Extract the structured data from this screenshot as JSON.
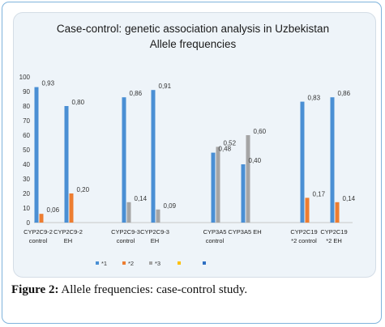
{
  "chart_data": {
    "type": "bar",
    "title": "Case-control: genetic association analysis in Uzbekistan",
    "subtitle": "Allele  frequencies",
    "ylim": [
      0,
      100
    ],
    "yticks": [
      0,
      10,
      20,
      30,
      40,
      50,
      60,
      70,
      80,
      90,
      100
    ],
    "grid": false,
    "legend_position": "bottom",
    "categories": [
      [
        "CYP2C9-2",
        "control"
      ],
      [
        "CYP2C9-2",
        "EH"
      ],
      [
        "CYP2C9-3",
        "control"
      ],
      [
        "CYP2C9-3",
        "EH"
      ],
      [
        "CYP3A5",
        "control"
      ],
      [
        "CYP3A5 EH"
      ],
      [
        "CYP2C19",
        "*2 control"
      ],
      [
        "CYP2C19",
        "*2 EH"
      ]
    ],
    "series": [
      {
        "name": "*1",
        "color": "#4a8fd4",
        "values": [
          93,
          80,
          86,
          91,
          48,
          40,
          83,
          86
        ],
        "labels": [
          "0,93",
          "0,80",
          "0,86",
          "0,91",
          "0,48",
          "0,40",
          "0,83",
          "0,86"
        ]
      },
      {
        "name": "*2",
        "color": "#ed7d31",
        "values": [
          6,
          20,
          null,
          null,
          null,
          null,
          17,
          14
        ],
        "labels": [
          "0,06",
          "0,20",
          "",
          "",
          "",
          "",
          "0,17",
          "0,14"
        ]
      },
      {
        "name": "*3",
        "color": "#a5a5a5",
        "values": [
          null,
          null,
          14,
          9,
          52,
          60,
          null,
          null
        ],
        "labels": [
          "",
          "",
          "0,14",
          "0,09",
          "0,52",
          "0,60",
          "",
          ""
        ]
      },
      {
        "name": "",
        "color": "#ffc000",
        "values": [
          null,
          null,
          null,
          null,
          null,
          null,
          null,
          null
        ],
        "labels": []
      },
      {
        "name": "",
        "color": "#2e6fc2",
        "values": [
          null,
          null,
          null,
          null,
          null,
          null,
          null,
          null
        ],
        "labels": []
      }
    ]
  },
  "caption": {
    "label": "Figure 2:",
    "text": " Allele frequencies: case-control study."
  }
}
